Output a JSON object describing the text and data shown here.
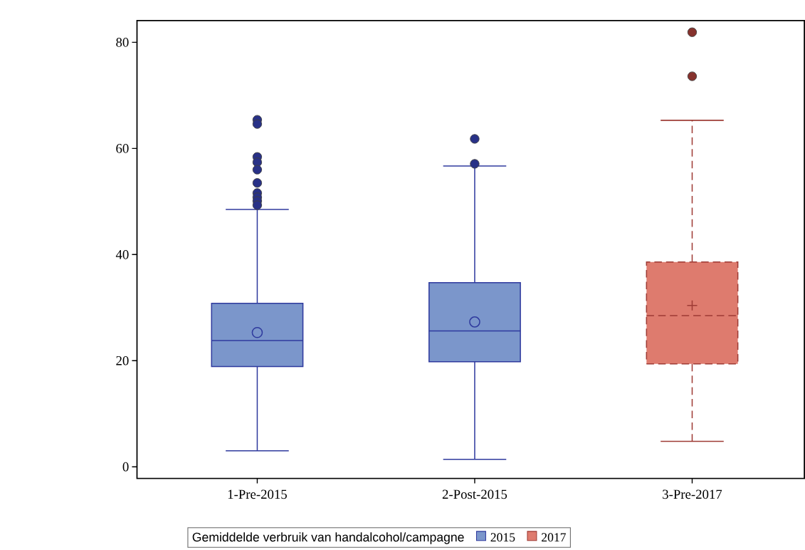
{
  "chart_data": {
    "type": "box",
    "categories": [
      "1-Pre-2015",
      "2-Post-2015",
      "3-Pre-2017"
    ],
    "ylim": [
      -2.2,
      84.1
    ],
    "yticks": [
      0,
      20,
      40,
      60,
      80
    ],
    "grid": false,
    "legend": "bottom",
    "legend_title": "Gemiddelde verbruik van handalcohol/campagne",
    "series": [
      {
        "name": "2015",
        "color": "#7b96cb",
        "marker": "circle",
        "line_style": "solid",
        "boxes": [
          {
            "low": 3.0,
            "q1": 18.9,
            "median": 23.8,
            "q3": 30.8,
            "high": 48.5,
            "mean": 25.3,
            "outliers": [
              65.4,
              64.6,
              58.4,
              57.4,
              56.0,
              53.5,
              51.6,
              50.8,
              50.1,
              49.3
            ]
          },
          {
            "low": 1.4,
            "q1": 19.8,
            "median": 25.6,
            "q3": 34.7,
            "high": 56.7,
            "mean": 27.3,
            "outliers": [
              61.8,
              57.1
            ]
          },
          null
        ]
      },
      {
        "name": "2017",
        "color": "#de7b6e",
        "marker": "cross",
        "line_style": "dashed",
        "boxes": [
          null,
          null,
          {
            "low": 4.8,
            "q1": 19.4,
            "median": 28.5,
            "q3": 38.6,
            "high": 65.3,
            "mean": 30.4,
            "outliers": [
              81.9,
              73.6
            ]
          }
        ]
      }
    ]
  }
}
